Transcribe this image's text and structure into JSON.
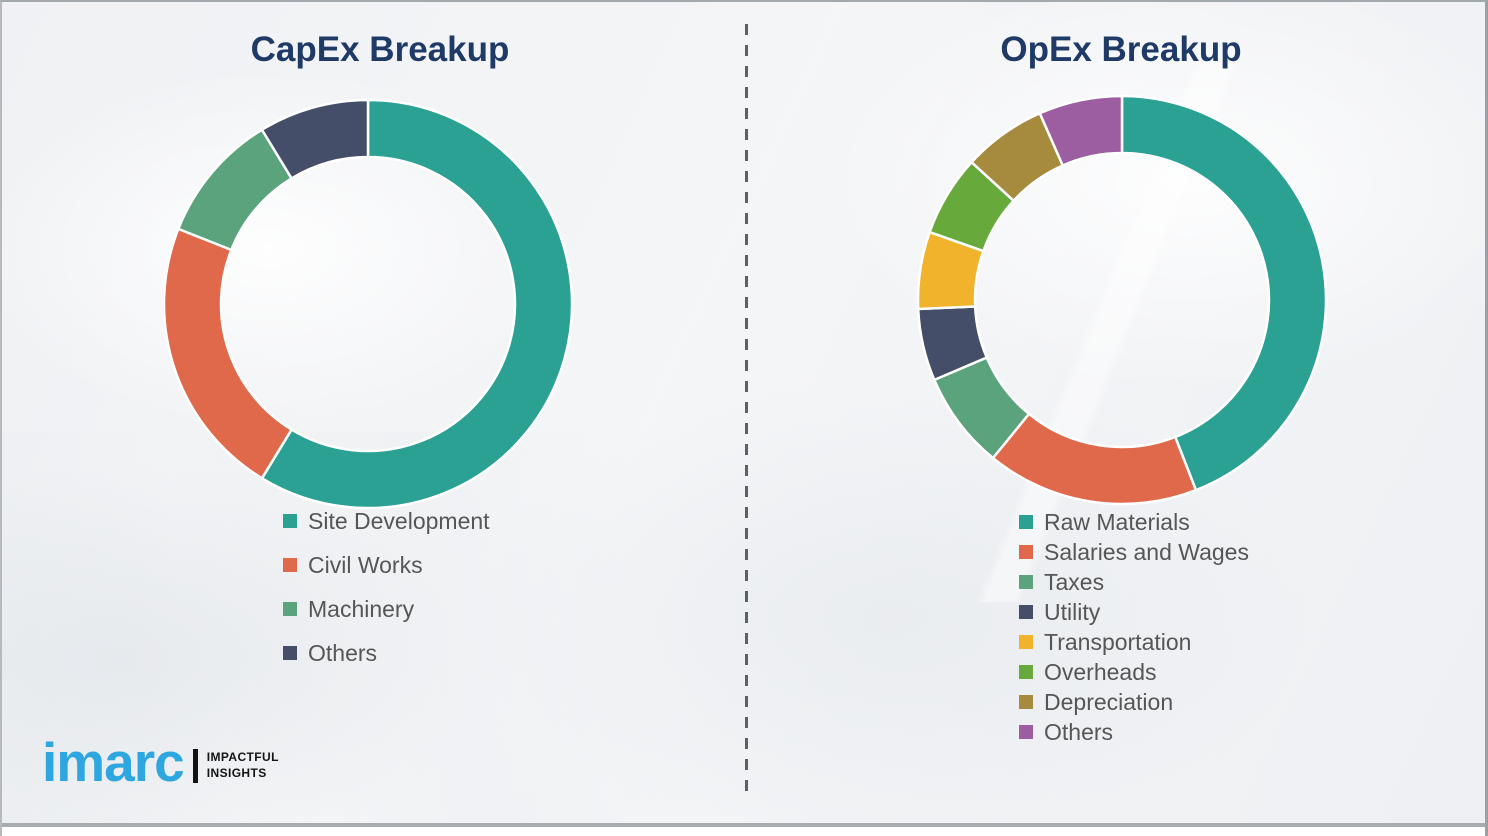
{
  "logo": {
    "brand": "imarc",
    "tagline_line1": "IMPACTFUL",
    "tagline_line2": "INSIGHTS",
    "brand_color": "#2ea7e0"
  },
  "divider_color": "#5d6166",
  "title_color": "#1f3a66",
  "chart_data": [
    {
      "type": "pie",
      "subtype": "donut",
      "title": "CapEx Breakup",
      "legend_position": "below-left",
      "start_angle_deg": 0,
      "direction": "clockwise",
      "segments": [
        {
          "label": "Site Development",
          "value_pct": 58.7,
          "color": "#2aa193"
        },
        {
          "label": "Civil Works",
          "value_pct": 22.3,
          "color": "#e0684b"
        },
        {
          "label": "Machinery",
          "value_pct": 10.3,
          "color": "#5ba37c"
        },
        {
          "label": "Others",
          "value_pct": 8.7,
          "color": "#454e68"
        }
      ]
    },
    {
      "type": "pie",
      "subtype": "donut",
      "title": "OpEx Breakup",
      "legend_position": "below-left",
      "start_angle_deg": 0,
      "direction": "clockwise",
      "segments": [
        {
          "label": "Raw Materials",
          "value_pct": 44.1,
          "color": "#2aa193"
        },
        {
          "label": "Salaries and Wages",
          "value_pct": 16.8,
          "color": "#e0684b"
        },
        {
          "label": "Taxes",
          "value_pct": 7.7,
          "color": "#5ba37c"
        },
        {
          "label": "Utility",
          "value_pct": 5.7,
          "color": "#454e68"
        },
        {
          "label": "Transportation",
          "value_pct": 6.1,
          "color": "#f2b32c"
        },
        {
          "label": "Overheads",
          "value_pct": 6.4,
          "color": "#68a93c"
        },
        {
          "label": "Depreciation",
          "value_pct": 6.6,
          "color": "#a68b3e"
        },
        {
          "label": "Others",
          "value_pct": 6.6,
          "color": "#9c5da1"
        }
      ]
    }
  ]
}
